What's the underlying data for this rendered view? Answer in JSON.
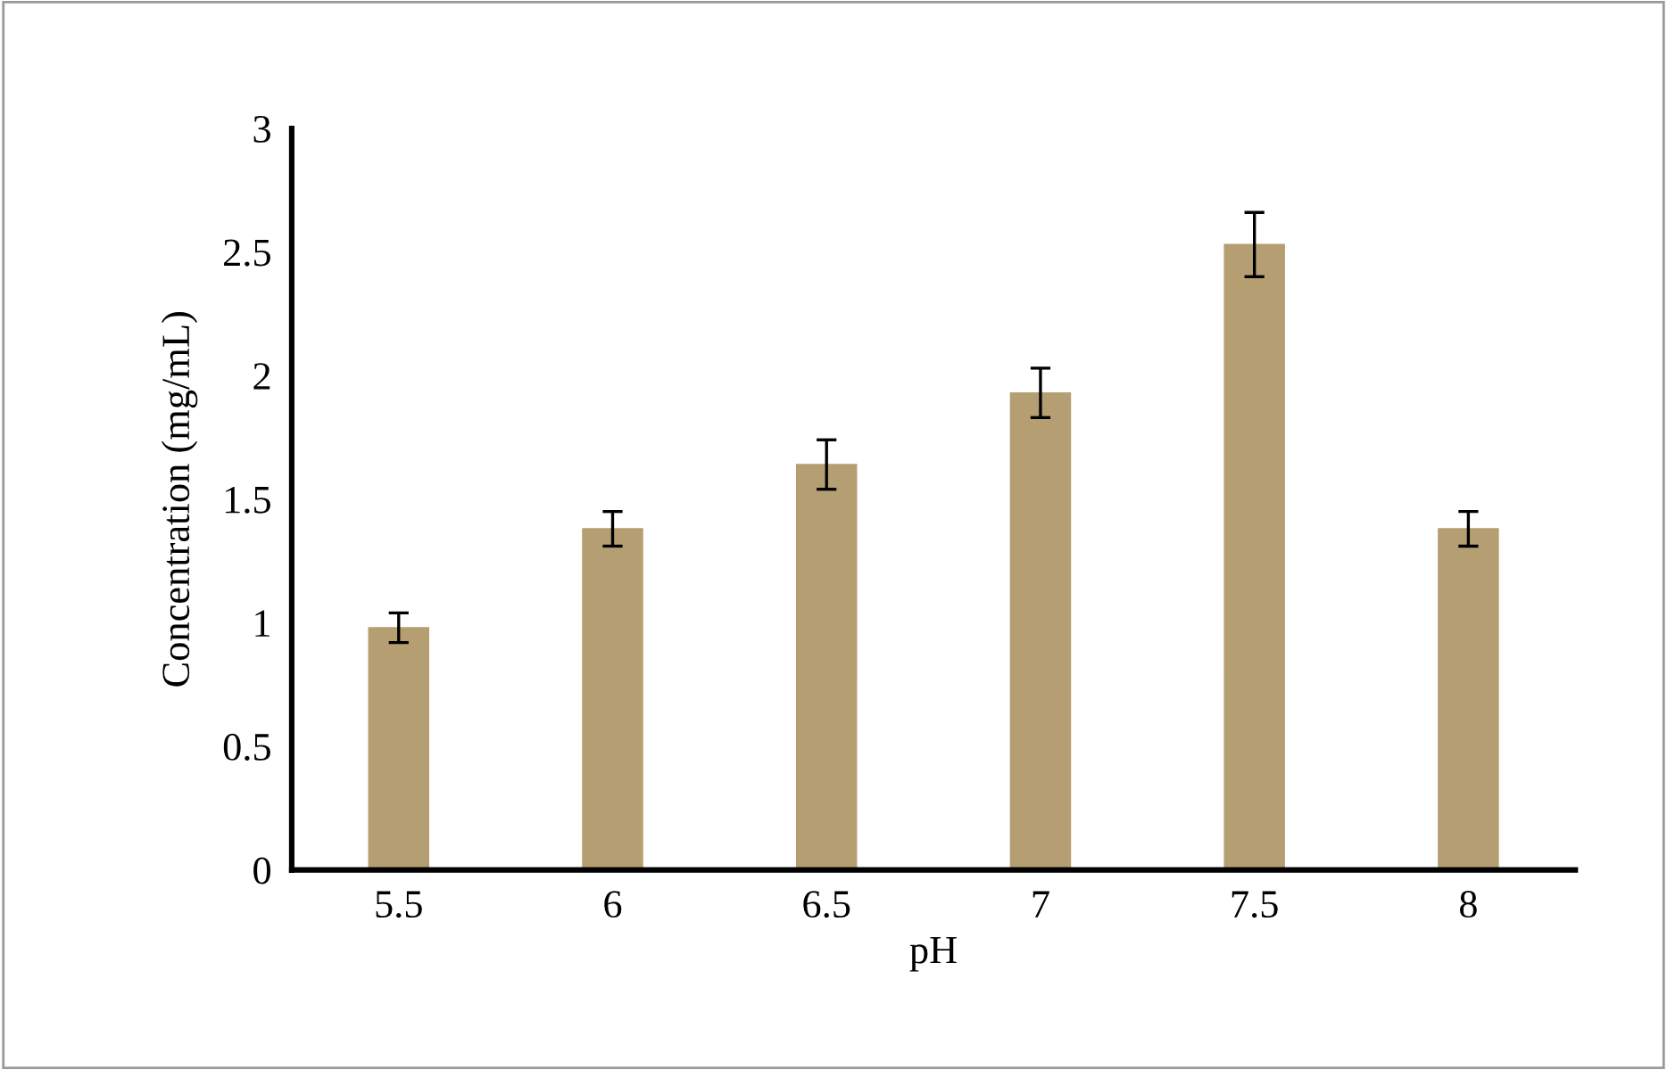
{
  "chart_data": {
    "type": "bar",
    "xlabel": "pH",
    "ylabel": "Concentration (mg/mL)",
    "categories": [
      "5.5",
      "6",
      "6.5",
      "7",
      "7.5",
      "8"
    ],
    "values": [
      0.98,
      1.38,
      1.64,
      1.93,
      2.53,
      1.38
    ],
    "errors": [
      0.06,
      0.07,
      0.1,
      0.1,
      0.13,
      0.07
    ],
    "color": "#b59f72",
    "ylim": [
      0,
      3
    ],
    "yticks": [
      0,
      0.5,
      1,
      1.5,
      2,
      2.5,
      3
    ],
    "grid": false,
    "legend": false
  }
}
